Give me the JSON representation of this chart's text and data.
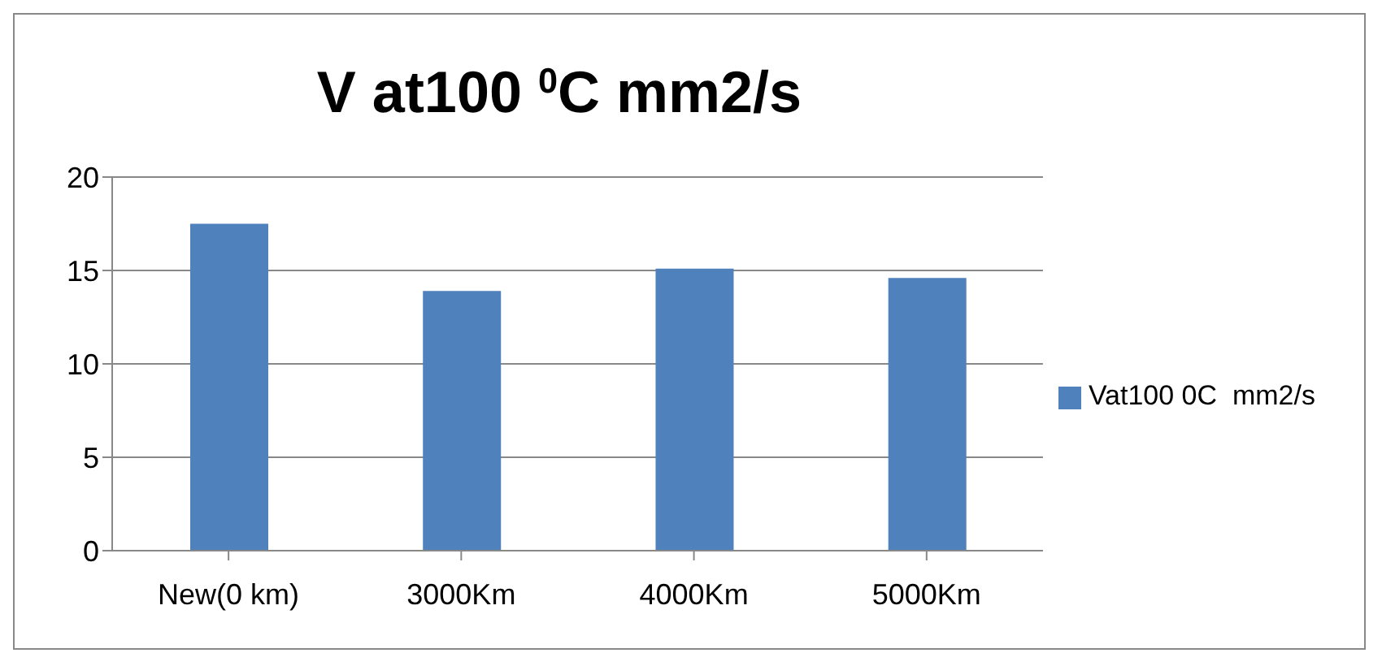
{
  "chart_data": {
    "type": "bar",
    "title": "V at100 $^{0}$C mm2/s",
    "categories": [
      "New(0 km)",
      "3000Km",
      "4000Km",
      "5000Km"
    ],
    "series": [
      {
        "name": "Vat100 0C  mm2/s",
        "color": "#4f81bd",
        "values": [
          17.5,
          13.9,
          15.1,
          14.6
        ]
      }
    ],
    "ylim": [
      0,
      20
    ],
    "yticks": [
      0,
      5,
      10,
      15,
      20
    ],
    "grid": "y",
    "legend": "right"
  }
}
